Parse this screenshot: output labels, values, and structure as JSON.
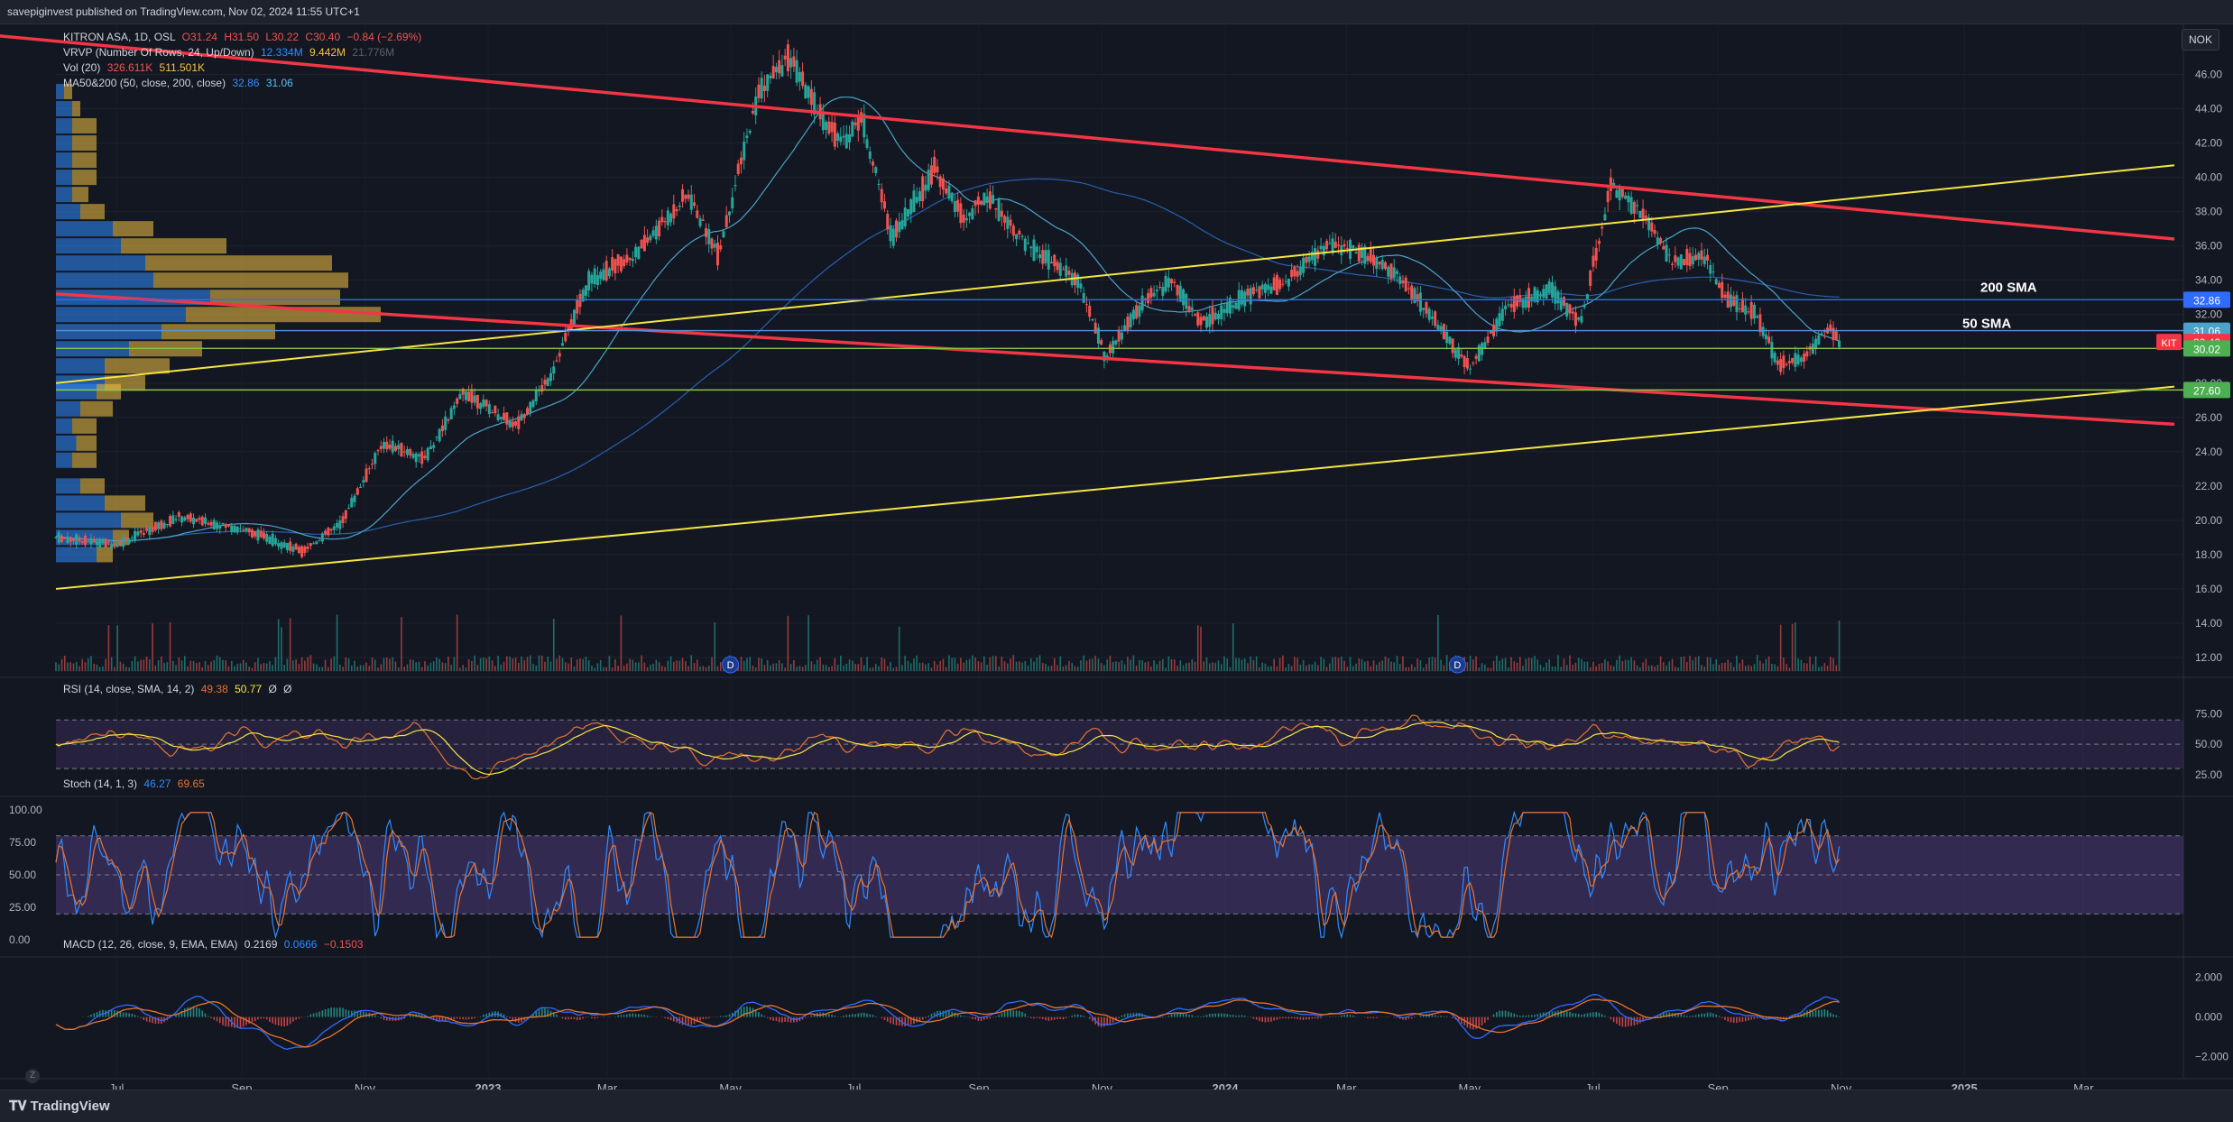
{
  "header": {
    "publish_line": "savepiginvest published on TradingView.com, Nov 02, 2024 11:55 UTC+1"
  },
  "footer": {
    "brand": "TradingView"
  },
  "currency": "NOK",
  "legend": {
    "main": "KITRON ASA, 1D, OSL",
    "o": "O31.24",
    "h": "H31.50",
    "l": "L30.22",
    "c": "C30.40",
    "chg": "−0.84 (−2.69%)",
    "vrvp": "VRVP (Number Of Rows, 24, Up/Down)",
    "vrvp_v1": "12.334M",
    "vrvp_v2": "9.442M",
    "vrvp_v3": "21.776M",
    "vol": "Vol (20)",
    "vol_v1": "326.611K",
    "vol_v2": "511.501K",
    "ma": "MA50&200 (50, close, 200, close)",
    "ma_v1": "32.86",
    "ma_v2": "31.06",
    "rsi": "RSI (14, close, SMA, 14, 2)",
    "rsi_v1": "49.38",
    "rsi_v2": "50.77",
    "rsi_v3": "Ø",
    "rsi_v4": "Ø",
    "stoch": "Stoch (14, 1, 3)",
    "stoch_v1": "46.27",
    "stoch_v2": "69.65",
    "macd": "MACD (12, 26, close, 9, EMA, EMA)",
    "macd_v1": "0.2169",
    "macd_v2": "0.0666",
    "macd_v3": "−0.1503"
  },
  "colors": {
    "bg": "#131722",
    "up": "#26a69a",
    "down": "#ef5350",
    "red_line": "#f23645",
    "yellow_line": "#f5e642",
    "blue_line": "#2962ff",
    "ma50": "#4aa3c8",
    "ma200": "#1f4e9e",
    "green_line": "#8bc34a",
    "rsi": "#e8732b",
    "stoch_k": "#2f8cff",
    "stoch_d": "#e8732b",
    "macd": "#2f6bff",
    "signal": "#e8732b"
  },
  "chart_data": {
    "type": "candlestick",
    "x_axis_labels": [
      "Jul",
      "Sep",
      "Nov",
      "2023",
      "Mar",
      "May",
      "Jul",
      "Sep",
      "Nov",
      "2024",
      "Mar",
      "May",
      "Jul",
      "Sep",
      "Nov",
      "2025",
      "Mar"
    ],
    "price_axis_ticks": [
      "46.00",
      "44.00",
      "42.00",
      "40.00",
      "38.00",
      "36.00",
      "34.00",
      "32.00",
      "30.00",
      "28.00",
      "26.00",
      "24.00",
      "22.00",
      "20.00",
      "18.00",
      "16.00",
      "14.00",
      "12.00"
    ],
    "ylim": [
      11,
      48
    ],
    "price_labels": {
      "sma200": "32.86",
      "sma50": "31.06",
      "last": "30.40",
      "ticker": "KIT",
      "support1": "30.02",
      "support2": "27.60"
    },
    "annotations": {
      "sma200": "200 SMA",
      "sma50": "50 SMA"
    },
    "close_series_anchors": [
      [
        "2022-06-01",
        19.0
      ],
      [
        "2022-07-01",
        18.6
      ],
      [
        "2022-08-01",
        20.2
      ],
      [
        "2022-09-01",
        19.5
      ],
      [
        "2022-10-01",
        18.2
      ],
      [
        "2022-10-20",
        19.8
      ],
      [
        "2022-11-10",
        24.5
      ],
      [
        "2022-12-01",
        23.6
      ],
      [
        "2022-12-20",
        27.5
      ],
      [
        "2023-01-15",
        25.5
      ],
      [
        "2023-02-01",
        28.5
      ],
      [
        "2023-02-20",
        34.0
      ],
      [
        "2023-03-15",
        35.5
      ],
      [
        "2023-04-10",
        39.0
      ],
      [
        "2023-04-25",
        35.5
      ],
      [
        "2023-05-15",
        45.0
      ],
      [
        "2023-05-30",
        47.0
      ],
      [
        "2023-06-10",
        44.5
      ],
      [
        "2023-06-25",
        42.0
      ],
      [
        "2023-07-05",
        43.5
      ],
      [
        "2023-07-20",
        36.5
      ],
      [
        "2023-08-10",
        40.5
      ],
      [
        "2023-08-25",
        37.5
      ],
      [
        "2023-09-05",
        39.0
      ],
      [
        "2023-09-25",
        36.0
      ],
      [
        "2023-10-20",
        34.0
      ],
      [
        "2023-11-03",
        29.5
      ],
      [
        "2023-11-20",
        32.5
      ],
      [
        "2023-12-05",
        34.0
      ],
      [
        "2023-12-20",
        31.5
      ],
      [
        "2024-01-10",
        33.0
      ],
      [
        "2024-02-01",
        34.0
      ],
      [
        "2024-02-20",
        36.0
      ],
      [
        "2024-03-05",
        35.8
      ],
      [
        "2024-03-25",
        34.5
      ],
      [
        "2024-04-15",
        31.5
      ],
      [
        "2024-05-01",
        28.8
      ],
      [
        "2024-05-20",
        32.5
      ],
      [
        "2024-06-10",
        33.5
      ],
      [
        "2024-06-25",
        31.5
      ],
      [
        "2024-07-10",
        39.5
      ],
      [
        "2024-07-25",
        38.0
      ],
      [
        "2024-08-10",
        35.0
      ],
      [
        "2024-08-25",
        35.5
      ],
      [
        "2024-09-05",
        33.0
      ],
      [
        "2024-09-20",
        32.0
      ],
      [
        "2024-10-01",
        29.0
      ],
      [
        "2024-10-15",
        29.6
      ],
      [
        "2024-10-25",
        31.2
      ],
      [
        "2024-11-01",
        30.4
      ]
    ],
    "trendlines": {
      "red_upper": [
        [
          "2022-01-01",
          49.6
        ],
        [
          "2025-04-15",
          36.4
        ]
      ],
      "red_lower": [
        [
          "2022-06-01",
          33.2
        ],
        [
          "2025-04-15",
          25.6
        ]
      ],
      "yellow_upper": [
        [
          "2022-06-01",
          28.0
        ],
        [
          "2025-04-15",
          40.7
        ]
      ],
      "yellow_lower": [
        [
          "2022-06-01",
          16.0
        ],
        [
          "2025-04-15",
          27.8
        ]
      ],
      "horizontal_200sma": 32.86,
      "horizontal_50sma": 31.06,
      "horizontal_support1": 30.02,
      "horizontal_support2": 27.6
    },
    "rsi": {
      "axis_ticks": [
        "75.00",
        "50.00",
        "25.00"
      ],
      "band": [
        30,
        70
      ],
      "last": [
        49.38,
        50.77
      ]
    },
    "stoch": {
      "axis_ticks": [
        "100.00",
        "75.00",
        "50.00",
        "25.00",
        "0.00"
      ],
      "band": [
        20,
        80
      ],
      "last": [
        46.27,
        69.65
      ]
    },
    "macd": {
      "axis_ticks": [
        "2.000",
        "0.000",
        "−2.000"
      ],
      "last": [
        0.2169,
        0.0666,
        -0.1503
      ]
    },
    "dividend_marker": "D"
  }
}
